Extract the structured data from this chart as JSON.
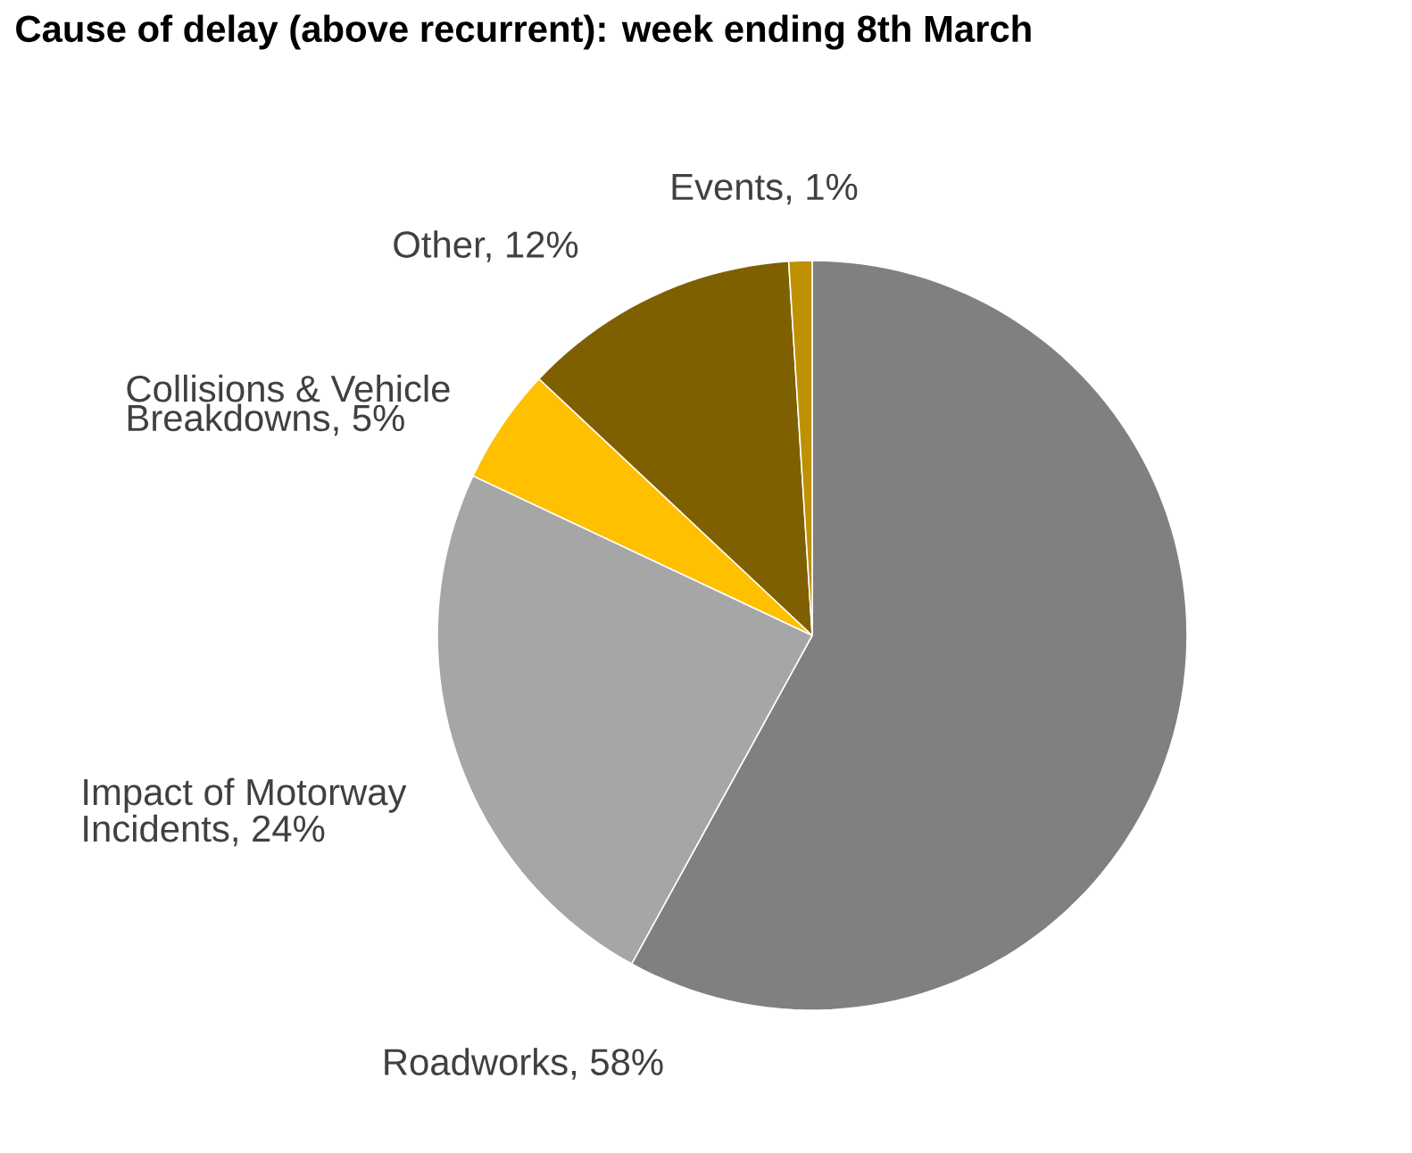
{
  "chart_data": {
    "type": "pie",
    "title": "Cause of delay (above recurrent): week ending 8th March",
    "categories": [
      "Roadworks, 58%",
      "Impact of Motorway Incidents, 24%",
      "Collisions & Vehicle Breakdowns, 5%",
      "Other, 12%",
      "Events, 1%"
    ],
    "values": [
      58,
      24,
      5,
      12,
      1
    ],
    "colors": [
      "#808080",
      "#a6a6a6",
      "#ffc000",
      "#7f6000",
      "#bf9000"
    ]
  }
}
